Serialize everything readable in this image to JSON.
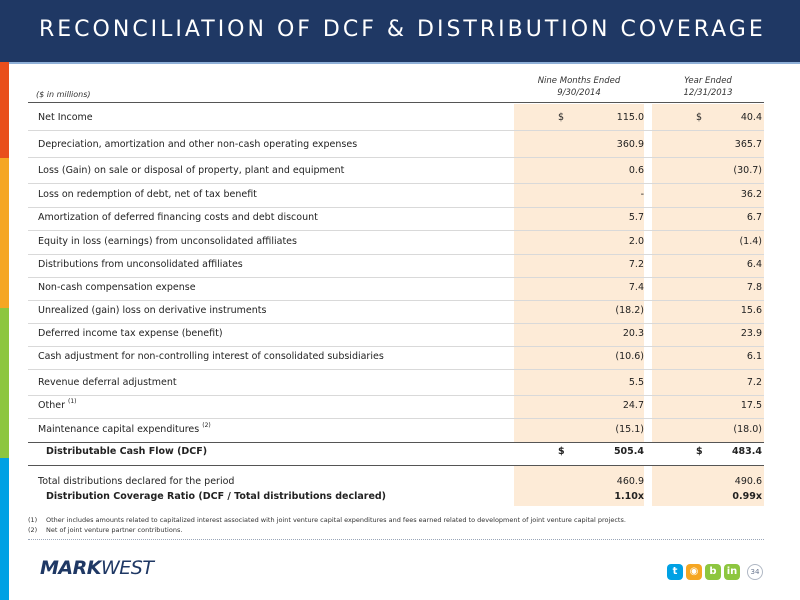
{
  "header": {
    "title": "RECONCILIATION OF DCF & DISTRIBUTION COVERAGE"
  },
  "colors": {
    "header_bg": "#1f3864",
    "shade": "#fdebd7",
    "sidebar": [
      "#1f3864",
      "#e94e1b",
      "#f5a623",
      "#8dc63f",
      "#00a1e4",
      "#1f3864"
    ]
  },
  "table": {
    "units": "($ in millions)",
    "col1_line1": "Nine Months Ended",
    "col1_line2": "9/30/2014",
    "col2_line1": "Year Ended",
    "col2_line2": "12/31/2013",
    "currency": "$",
    "rows": [
      {
        "label": "Net Income",
        "v1": "115.0",
        "v2": "40.4"
      },
      {
        "label": "Depreciation, amortization and other non-cash operating expenses",
        "v1": "360.9",
        "v2": "365.7"
      },
      {
        "label": "Loss (Gain) on sale or disposal of property, plant and equipment",
        "v1": "0.6",
        "v2": "(30.7)"
      },
      {
        "label": "Loss on redemption of debt, net of tax benefit",
        "v1": "-",
        "v2": "36.2"
      },
      {
        "label": "Amortization of deferred financing costs and debt discount",
        "v1": "5.7",
        "v2": "6.7"
      },
      {
        "label": "Equity in loss (earnings) from unconsolidated affiliates",
        "v1": "2.0",
        "v2": "(1.4)"
      },
      {
        "label": "Distributions from unconsolidated affiliates",
        "v1": "7.2",
        "v2": "6.4"
      },
      {
        "label": "Non-cash compensation expense",
        "v1": "7.4",
        "v2": "7.8"
      },
      {
        "label": "Unrealized (gain) loss on derivative instruments",
        "v1": "(18.2)",
        "v2": "15.6"
      },
      {
        "label": "Deferred income tax expense (benefit)",
        "v1": "20.3",
        "v2": "23.9"
      },
      {
        "label": "Cash adjustment for non-controlling interest of consolidated subsidiaries",
        "v1": "(10.6)",
        "v2": "6.1"
      },
      {
        "label": "Revenue deferral adjustment",
        "v1": "5.5",
        "v2": "7.2"
      },
      {
        "label": "Other",
        "sup": "(1)",
        "v1": "24.7",
        "v2": "17.5"
      },
      {
        "label": "Maintenance capital expenditures",
        "sup": "(2)",
        "v1": "(15.1)",
        "v2": "(18.0)"
      }
    ],
    "dcf": {
      "label": "Distributable Cash Flow (DCF)",
      "v1": "505.4",
      "v2": "483.4"
    },
    "distributions": {
      "label": "Total distributions declared for the period",
      "v1": "460.9",
      "v2": "490.6"
    },
    "coverage": {
      "label": "Distribution Coverage Ratio (DCF / Total distributions declared)",
      "v1": "1.10x",
      "v2": "0.99x"
    }
  },
  "footnotes": [
    {
      "num": "(1)",
      "text": "Other includes amounts related to capitalized interest associated with joint venture capital expenditures and fees earned related to development of joint venture capital projects."
    },
    {
      "num": "(2)",
      "text": "Net of joint venture partner contributions."
    }
  ],
  "footer": {
    "logo_bold": "MARK",
    "logo_light": "WEST",
    "social_icons": [
      "twitter-icon",
      "rss-icon",
      "blog-icon",
      "linkedin-icon",
      "youtube-icon"
    ],
    "page_number": "34"
  }
}
